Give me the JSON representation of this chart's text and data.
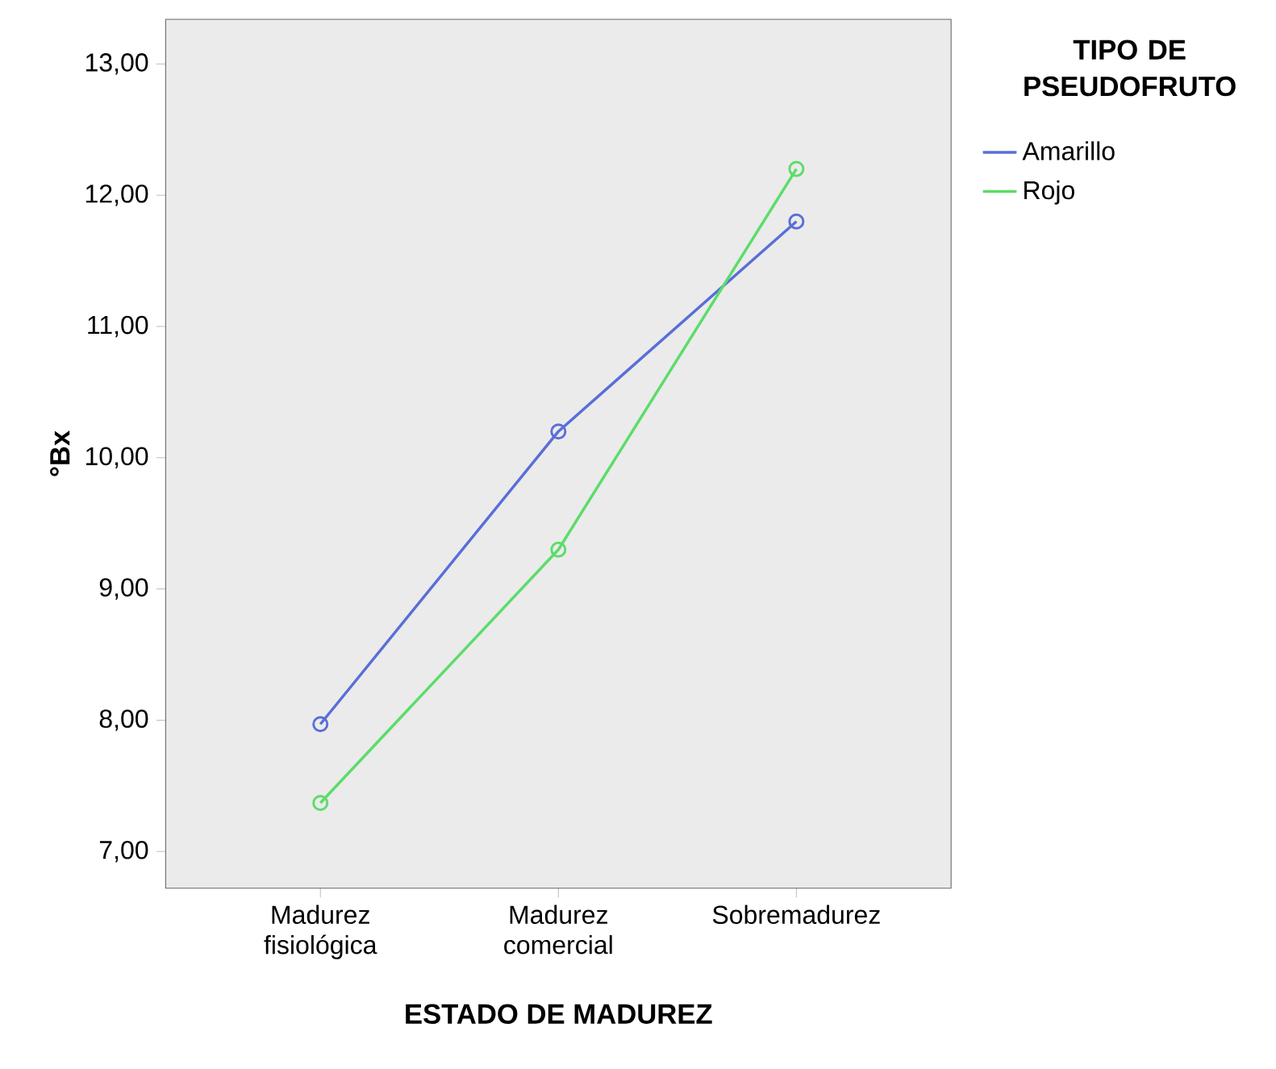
{
  "chart_data": {
    "type": "line",
    "xlabel": "ESTADO DE MADUREZ",
    "ylabel": "°Bx",
    "legend_title": "TIPO DE PSEUDOFRUTO",
    "categories": [
      "Madurez fisiológica",
      "Madurez comercial",
      "Sobremadurez"
    ],
    "series": [
      {
        "name": "Amarillo",
        "color": "#5a6ed8",
        "values": [
          7.97,
          10.2,
          11.8
        ]
      },
      {
        "name": "Rojo",
        "color": "#5cdc6a",
        "values": [
          7.37,
          9.3,
          12.2
        ]
      }
    ],
    "ylim": [
      6.72,
      13.34
    ],
    "yticks": [
      {
        "value": 7,
        "label": "7,00"
      },
      {
        "value": 8,
        "label": "8,00"
      },
      {
        "value": 9,
        "label": "9,00"
      },
      {
        "value": 10,
        "label": "10,00"
      },
      {
        "value": 11,
        "label": "11,00"
      },
      {
        "value": 12,
        "label": "12,00"
      },
      {
        "value": 13,
        "label": "13,00"
      }
    ],
    "legend": "right",
    "marker": "circle",
    "line_style": "solid",
    "grid": false
  }
}
